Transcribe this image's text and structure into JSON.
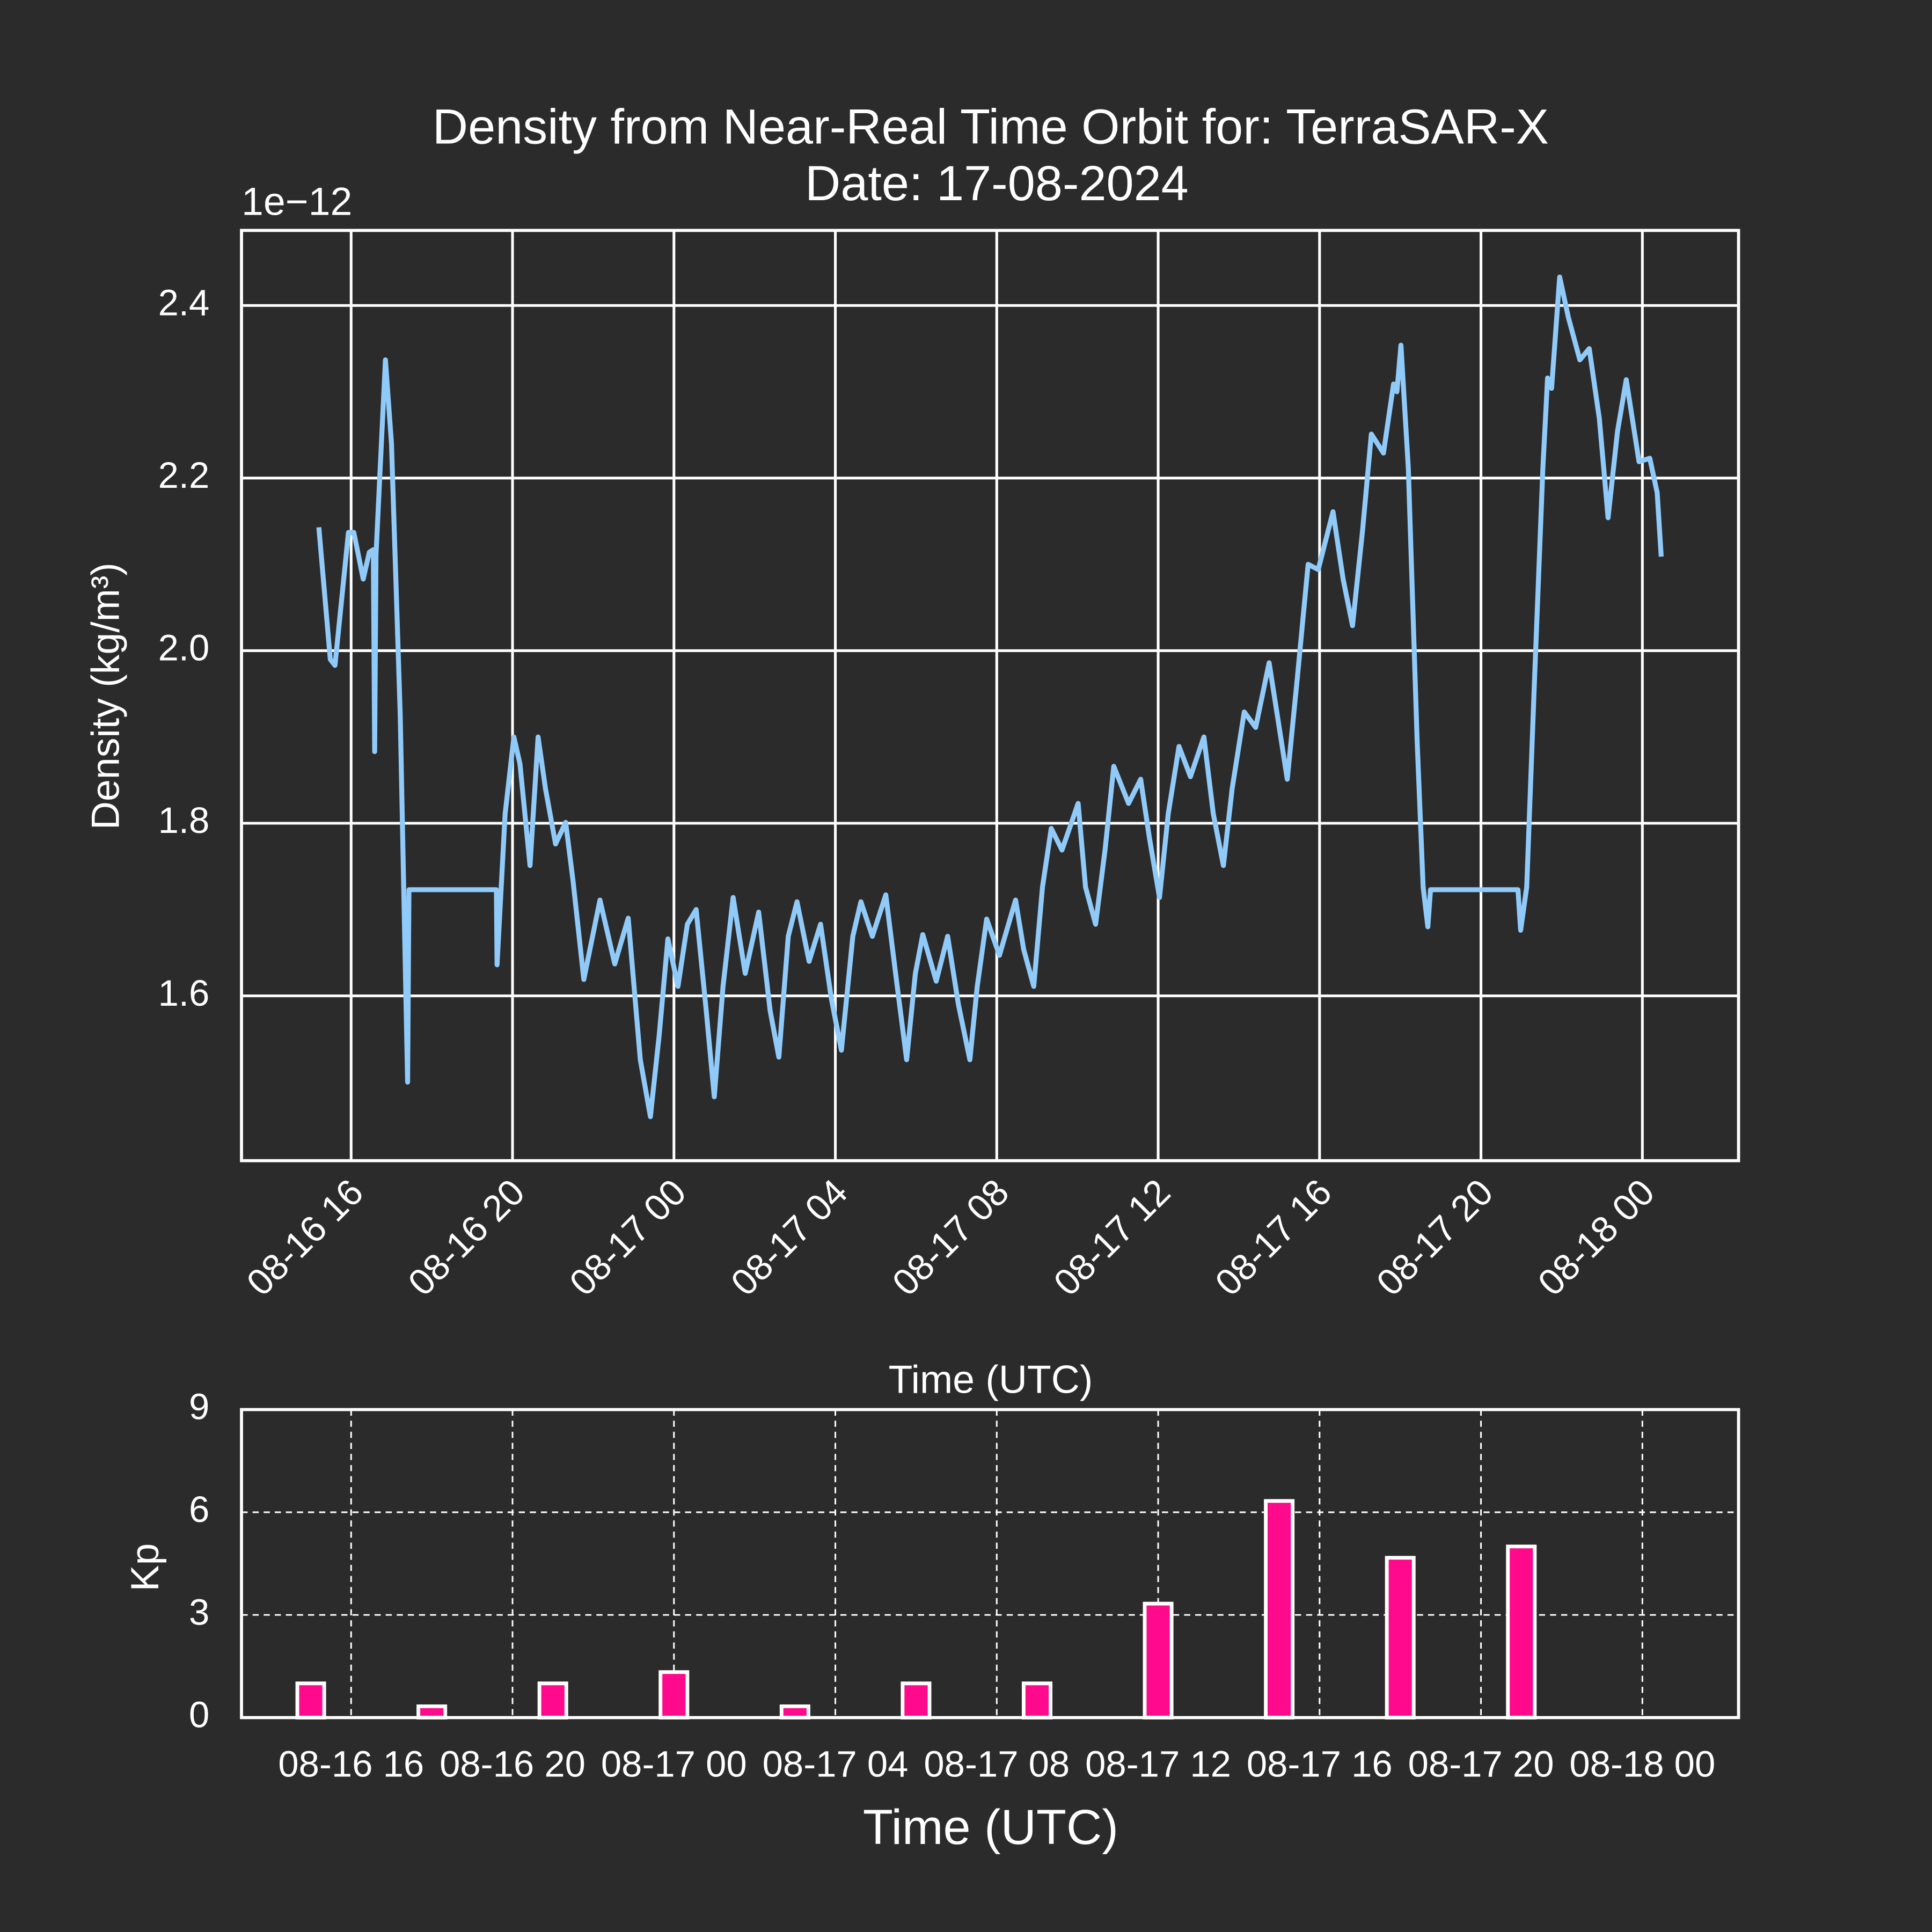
{
  "chart_data": [
    {
      "type": "line",
      "title": "Density from Near-Real Time Orbit for: TerraSAR-X",
      "subtitle": "Date: 17-08-2024",
      "y_offset_label": "1e−12",
      "xlabel": "Time (UTC)",
      "ylabel": "Density (kg/m³)",
      "color": "#90caf9",
      "grid": true,
      "xlim": [
        "08-16 13:17",
        "08-18 02:23"
      ],
      "xticks": [
        {
          "value": "08-16 16:00",
          "label": "08-16 16"
        },
        {
          "value": "08-16 20:00",
          "label": "08-16 20"
        },
        {
          "value": "08-17 00:00",
          "label": "08-17 00"
        },
        {
          "value": "08-17 04:00",
          "label": "08-17 04"
        },
        {
          "value": "08-17 08:00",
          "label": "08-17 08"
        },
        {
          "value": "08-17 12:00",
          "label": "08-17 12"
        },
        {
          "value": "08-17 16:00",
          "label": "08-17 16"
        },
        {
          "value": "08-17 20:00",
          "label": "08-17 20"
        },
        {
          "value": "08-18 00:00",
          "label": "08-18 00"
        }
      ],
      "ylim": [
        1.409,
        2.487
      ],
      "yticks": [
        1.6,
        1.8,
        {
          "value": 2,
          "label": "2.0"
        },
        2.2,
        2.4
      ],
      "x": [
        "08-16 15:12",
        "08-16 15:29",
        "08-16 15:36",
        "08-16 15:56",
        "08-16 16:04",
        "08-16 16:18",
        "08-16 16:27",
        "08-16 16:33",
        "08-16 16:35",
        "08-16 16:37",
        "08-16 16:51",
        "08-16 17:00",
        "08-16 17:13",
        "08-16 17:24",
        "08-16 17:26",
        "08-16 19:36",
        "08-16 19:37",
        "08-16 19:49",
        "08-16 20:02",
        "08-16 20:11",
        "08-16 20:26",
        "08-16 20:38",
        "08-16 20:49",
        "08-16 21:04",
        "08-16 21:19",
        "08-16 21:30",
        "08-16 21:46",
        "08-16 22:10",
        "08-16 22:32",
        "08-16 22:52",
        "08-16 23:10",
        "08-16 23:25",
        "08-16 23:38",
        "08-16 23:51",
        "08-17 00:06",
        "08-17 00:20",
        "08-17 00:33",
        "08-17 00:48",
        "08-17 01:00",
        "08-17 01:13",
        "08-17 01:28",
        "08-17 01:46",
        "08-17 02:06",
        "08-17 02:23",
        "08-17 02:36",
        "08-17 02:50",
        "08-17 03:03",
        "08-17 03:21",
        "08-17 03:38",
        "08-17 03:54",
        "08-17 04:09",
        "08-17 04:26",
        "08-17 04:38",
        "08-17 04:55",
        "08-17 05:15",
        "08-17 05:32",
        "08-17 05:46",
        "08-17 05:59",
        "08-17 06:10",
        "08-17 06:30",
        "08-17 06:47",
        "08-17 07:03",
        "08-17 07:20",
        "08-17 07:31",
        "08-17 07:45",
        "08-17 08:04",
        "08-17 08:28",
        "08-17 08:40",
        "08-17 08:55",
        "08-17 09:08",
        "08-17 09:21",
        "08-17 09:37",
        "08-17 10:01",
        "08-17 10:12",
        "08-17 10:27",
        "08-17 10:41",
        "08-17 10:54",
        "08-17 11:16",
        "08-17 11:34",
        "08-17 11:47",
        "08-17 12:02",
        "08-17 12:15",
        "08-17 12:31",
        "08-17 12:48",
        "08-17 13:08",
        "08-17 13:22",
        "08-17 13:37",
        "08-17 13:50",
        "08-17 14:08",
        "08-17 14:25",
        "08-17 14:45",
        "08-17 15:00",
        "08-17 15:12",
        "08-17 15:27",
        "08-17 15:43",
        "08-17 15:58",
        "08-17 16:20",
        "08-17 16:35",
        "08-17 16:49",
        "08-17 17:04",
        "08-17 17:17",
        "08-17 17:35",
        "08-17 17:50",
        "08-17 17:55",
        "08-17 18:01",
        "08-17 18:12",
        "08-17 18:25",
        "08-17 18:34",
        "08-17 18:41",
        "08-17 18:45",
        "08-17 20:55",
        "08-17 20:59",
        "08-17 21:08",
        "08-17 21:19",
        "08-17 21:32",
        "08-17 21:39",
        "08-17 21:45",
        "08-17 21:57",
        "08-17 22:10",
        "08-17 22:27",
        "08-17 22:41",
        "08-17 22:56",
        "08-17 23:09",
        "08-17 23:23",
        "08-17 23:36",
        "08-17 23:55",
        "08-18 00:11",
        "08-18 00:22",
        "08-18 00:28"
      ],
      "values": [
        2.143,
        1.99,
        1.983,
        2.137,
        2.137,
        2.083,
        2.114,
        2.117,
        1.883,
        2.111,
        2.337,
        2.24,
        1.926,
        1.5,
        1.723,
        1.723,
        1.636,
        1.811,
        1.9,
        1.869,
        1.751,
        1.9,
        1.84,
        1.776,
        1.801,
        1.733,
        1.619,
        1.711,
        1.637,
        1.69,
        1.526,
        1.46,
        1.554,
        1.666,
        1.611,
        1.683,
        1.7,
        1.583,
        1.483,
        1.611,
        1.714,
        1.626,
        1.697,
        1.583,
        1.529,
        1.669,
        1.709,
        1.64,
        1.683,
        1.597,
        1.537,
        1.669,
        1.709,
        1.669,
        1.717,
        1.611,
        1.526,
        1.626,
        1.671,
        1.617,
        1.669,
        1.59,
        1.526,
        1.611,
        1.689,
        1.647,
        1.711,
        1.654,
        1.611,
        1.726,
        1.794,
        1.769,
        1.823,
        1.726,
        1.683,
        1.769,
        1.866,
        1.823,
        1.851,
        1.783,
        1.714,
        1.811,
        1.889,
        1.854,
        1.9,
        1.811,
        1.751,
        1.84,
        1.929,
        1.911,
        1.986,
        1.911,
        1.851,
        1.969,
        2.1,
        2.094,
        2.161,
        2.083,
        2.029,
        2.14,
        2.251,
        2.229,
        2.309,
        2.3,
        2.354,
        2.211,
        1.897,
        1.726,
        1.68,
        1.723,
        1.723,
        1.676,
        1.726,
        1.954,
        2.211,
        2.316,
        2.304,
        2.433,
        2.386,
        2.337,
        2.35,
        2.269,
        2.154,
        2.254,
        2.314,
        2.219,
        2.223,
        2.183,
        2.109
      ]
    },
    {
      "type": "bar",
      "xlabel": "Time (UTC)",
      "ylabel": "Kp",
      "label_color": "#ff1a8c",
      "color": "#ff0a8c",
      "edgecolor": "#ffffff",
      "grid": "dashed",
      "xlim": [
        "08-16 13:17",
        "08-18 02:23"
      ],
      "xticks": [
        {
          "value": "08-16 16:00",
          "label": "08-16 16"
        },
        {
          "value": "08-16 20:00",
          "label": "08-16 20"
        },
        {
          "value": "08-17 00:00",
          "label": "08-17 00"
        },
        {
          "value": "08-17 04:00",
          "label": "08-17 04"
        },
        {
          "value": "08-17 08:00",
          "label": "08-17 08"
        },
        {
          "value": "08-17 12:00",
          "label": "08-17 12"
        },
        {
          "value": "08-17 16:00",
          "label": "08-17 16"
        },
        {
          "value": "08-17 20:00",
          "label": "08-17 20"
        },
        {
          "value": "08-18 00:00",
          "label": "08-18 00"
        }
      ],
      "ylim": [
        0,
        9
      ],
      "yticks": [
        0,
        3,
        6,
        9
      ],
      "x": [
        "08-16 15:00",
        "08-16 18:00",
        "08-16 21:00",
        "08-17 00:00",
        "08-17 03:00",
        "08-17 06:00",
        "08-17 09:00",
        "08-17 12:00",
        "08-17 15:00",
        "08-17 18:00",
        "08-17 21:00"
      ],
      "values": [
        1,
        0.33,
        1,
        1.33,
        0.33,
        1,
        1,
        3.33,
        6.33,
        4.67,
        5
      ]
    }
  ]
}
